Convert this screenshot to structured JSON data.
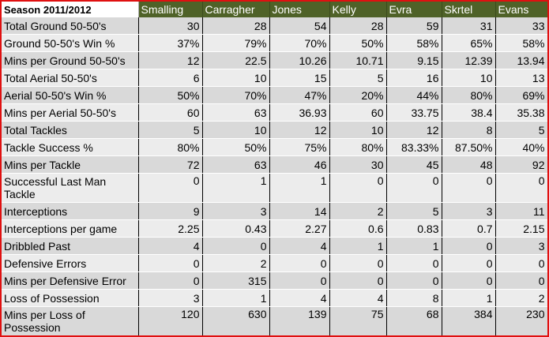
{
  "header": {
    "season": "Season 2011/2012",
    "players": [
      "Smalling",
      "Carragher",
      "Jones",
      "Kelly",
      "Evra",
      "Skrtel",
      "Evans"
    ]
  },
  "rows": [
    {
      "label": "Total Ground 50-50's",
      "values": [
        "30",
        "28",
        "54",
        "28",
        "59",
        "31",
        "33"
      ]
    },
    {
      "label": "Ground 50-50's Win %",
      "values": [
        "37%",
        "79%",
        "70%",
        "50%",
        "58%",
        "65%",
        "58%"
      ]
    },
    {
      "label": "Mins per Ground 50-50's",
      "values": [
        "12",
        "22.5",
        "10.26",
        "10.71",
        "9.15",
        "12.39",
        "13.94"
      ]
    },
    {
      "label": "Total Aerial 50-50's",
      "values": [
        "6",
        "10",
        "15",
        "5",
        "16",
        "10",
        "13"
      ]
    },
    {
      "label": "Aerial 50-50's Win %",
      "values": [
        "50%",
        "70%",
        "47%",
        "20%",
        "44%",
        "80%",
        "69%"
      ]
    },
    {
      "label": "Mins per Aerial 50-50's",
      "values": [
        "60",
        "63",
        "36.93",
        "60",
        "33.75",
        "38.4",
        "35.38"
      ]
    },
    {
      "label": "Total Tackles",
      "values": [
        "5",
        "10",
        "12",
        "10",
        "12",
        "8",
        "5"
      ]
    },
    {
      "label": "Tackle Success %",
      "values": [
        "80%",
        "50%",
        "75%",
        "80%",
        "83.33%",
        "87.50%",
        "40%"
      ]
    },
    {
      "label": "Mins per Tackle",
      "values": [
        "72",
        "63",
        "46",
        "30",
        "45",
        "48",
        "92"
      ]
    },
    {
      "label": "Successful Last Man Tackle",
      "values": [
        "0",
        "1",
        "1",
        "0",
        "0",
        "0",
        "0"
      ]
    },
    {
      "label": "Interceptions",
      "values": [
        "9",
        "3",
        "14",
        "2",
        "5",
        "3",
        "11"
      ]
    },
    {
      "label": "Interceptions per game",
      "values": [
        "2.25",
        "0.43",
        "2.27",
        "0.6",
        "0.83",
        "0.7",
        "2.15"
      ]
    },
    {
      "label": "Dribbled Past",
      "values": [
        "4",
        "0",
        "4",
        "1",
        "1",
        "0",
        "3"
      ]
    },
    {
      "label": "Defensive Errors",
      "values": [
        "0",
        "2",
        "0",
        "0",
        "0",
        "0",
        "0"
      ]
    },
    {
      "label": "Mins per Defensive Error",
      "values": [
        "0",
        "315",
        "0",
        "0",
        "0",
        "0",
        "0"
      ]
    },
    {
      "label": "Loss of Possession",
      "values": [
        "3",
        "1",
        "4",
        "4",
        "8",
        "1",
        "2"
      ]
    },
    {
      "label": "Mins per Loss of Possession",
      "values": [
        "120",
        "630",
        "139",
        "75",
        "68",
        "384",
        "230"
      ]
    }
  ],
  "theme": {
    "header_bg": "#4f6228",
    "frame_border": "#e01010",
    "row_bg": "#d9d9d9",
    "row_alt_bg": "#ececec"
  }
}
